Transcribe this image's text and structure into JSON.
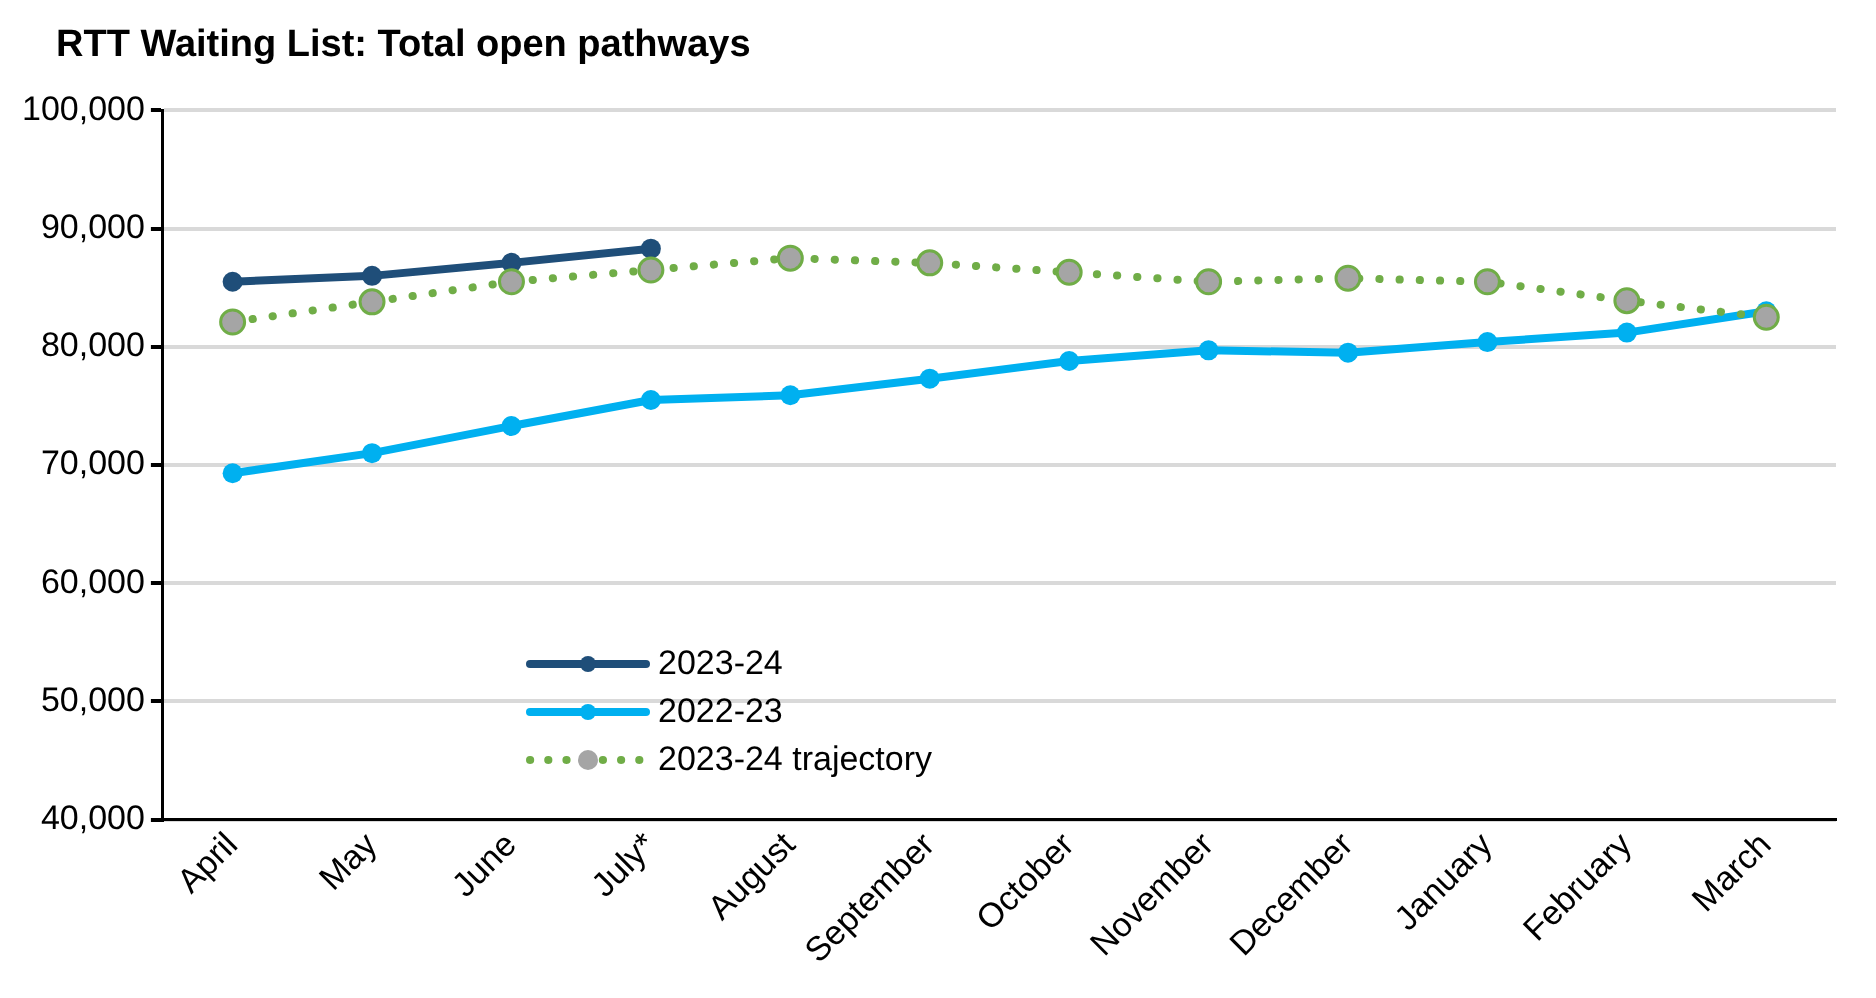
{
  "chart_data": {
    "type": "line",
    "title": "RTT Waiting List: Total open pathways",
    "categories": [
      "April",
      "May",
      "June",
      "July*",
      "August",
      "September",
      "October",
      "November",
      "December",
      "January",
      "February",
      "March"
    ],
    "series": [
      {
        "name": "2023-24",
        "color": "#1f4e79",
        "values": [
          85500,
          86000,
          87100,
          88300,
          null,
          null,
          null,
          null,
          null,
          null,
          null,
          null
        ]
      },
      {
        "name": "2022-23",
        "color": "#00b0f0",
        "values": [
          69300,
          71000,
          73300,
          75500,
          75900,
          77300,
          78800,
          79700,
          79500,
          80400,
          81200,
          83000
        ]
      },
      {
        "name": "2023-24 trajectory",
        "color": "#70ad47",
        "line_style": "dotted",
        "values": [
          82100,
          83800,
          85500,
          86500,
          87500,
          87100,
          86300,
          85500,
          85800,
          85500,
          83900,
          82500
        ]
      }
    ],
    "ylim": [
      40000,
      100000
    ],
    "yticks": [
      {
        "value": 40000,
        "label": "40,000"
      },
      {
        "value": 50000,
        "label": "50,000"
      },
      {
        "value": 60000,
        "label": "60,000"
      },
      {
        "value": 70000,
        "label": "70,000"
      },
      {
        "value": 80000,
        "label": "80,000"
      },
      {
        "value": 90000,
        "label": "90,000"
      },
      {
        "value": 100000,
        "label": "100,000"
      }
    ],
    "grid": "y",
    "legend": "bottom left",
    "marker": "circle"
  }
}
